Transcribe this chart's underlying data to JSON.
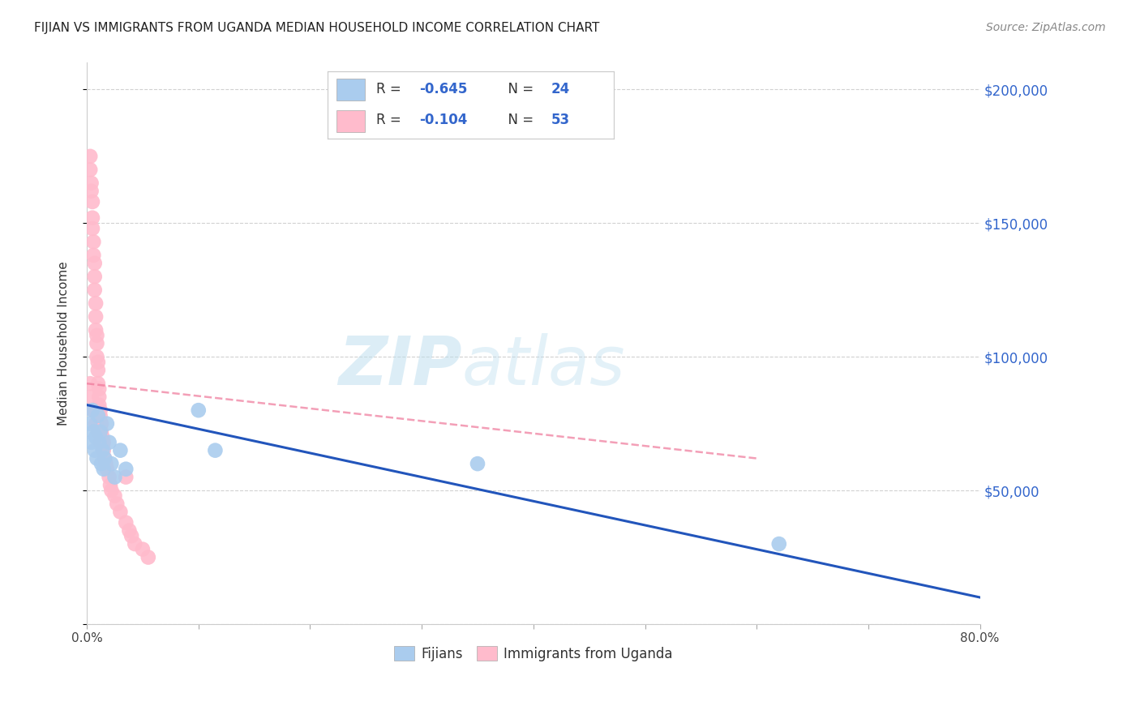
{
  "title": "FIJIAN VS IMMIGRANTS FROM UGANDA MEDIAN HOUSEHOLD INCOME CORRELATION CHART",
  "source": "Source: ZipAtlas.com",
  "ylabel": "Median Household Income",
  "xlim": [
    0,
    0.8
  ],
  "ylim": [
    0,
    210000
  ],
  "yticks": [
    0,
    50000,
    100000,
    150000,
    200000
  ],
  "ytick_labels": [
    "",
    "$50,000",
    "$100,000",
    "$150,000",
    "$200,000"
  ],
  "xticks": [
    0.0,
    0.1,
    0.2,
    0.3,
    0.4,
    0.5,
    0.6,
    0.7,
    0.8
  ],
  "xtick_labels": [
    "0.0%",
    "",
    "",
    "",
    "",
    "",
    "",
    "",
    "80.0%"
  ],
  "watermark_zip": "ZIP",
  "watermark_atlas": "atlas",
  "legend_R1": "R = -0.645",
  "legend_N1": "N = 24",
  "legend_R2": "R = -0.104",
  "legend_N2": "N = 53",
  "fijian_color": "#aaccee",
  "uganda_color": "#ffbbcc",
  "fijian_line_color": "#2255bb",
  "uganda_line_color": "#ee7799",
  "background_color": "#ffffff",
  "fijians_x": [
    0.003,
    0.004,
    0.005,
    0.006,
    0.007,
    0.008,
    0.009,
    0.01,
    0.011,
    0.012,
    0.013,
    0.014,
    0.015,
    0.016,
    0.018,
    0.02,
    0.022,
    0.025,
    0.03,
    0.035,
    0.1,
    0.115,
    0.35,
    0.62
  ],
  "fijians_y": [
    75000,
    68000,
    80000,
    72000,
    65000,
    70000,
    62000,
    78000,
    68000,
    72000,
    60000,
    65000,
    58000,
    62000,
    75000,
    68000,
    60000,
    55000,
    65000,
    58000,
    80000,
    65000,
    60000,
    30000
  ],
  "uganda_x": [
    0.003,
    0.003,
    0.004,
    0.004,
    0.005,
    0.005,
    0.005,
    0.006,
    0.006,
    0.007,
    0.007,
    0.007,
    0.008,
    0.008,
    0.008,
    0.009,
    0.009,
    0.009,
    0.01,
    0.01,
    0.01,
    0.011,
    0.011,
    0.011,
    0.012,
    0.012,
    0.013,
    0.013,
    0.014,
    0.015,
    0.015,
    0.016,
    0.017,
    0.018,
    0.02,
    0.021,
    0.022,
    0.025,
    0.027,
    0.03,
    0.035,
    0.038,
    0.04,
    0.043,
    0.05,
    0.055,
    0.003,
    0.004,
    0.006,
    0.008,
    0.01,
    0.012,
    0.035
  ],
  "uganda_y": [
    170000,
    175000,
    165000,
    162000,
    158000,
    152000,
    148000,
    143000,
    138000,
    135000,
    130000,
    125000,
    120000,
    115000,
    110000,
    108000,
    105000,
    100000,
    98000,
    95000,
    90000,
    88000,
    85000,
    82000,
    80000,
    78000,
    75000,
    72000,
    70000,
    68000,
    65000,
    62000,
    60000,
    58000,
    55000,
    52000,
    50000,
    48000,
    45000,
    42000,
    38000,
    35000,
    33000,
    30000,
    28000,
    25000,
    90000,
    85000,
    80000,
    75000,
    72000,
    68000,
    55000
  ],
  "fijian_trendline_x": [
    0.0,
    0.8
  ],
  "fijian_trendline_y": [
    82000,
    10000
  ],
  "uganda_trendline_x": [
    0.0,
    0.6
  ],
  "uganda_trendline_y": [
    90000,
    62000
  ]
}
